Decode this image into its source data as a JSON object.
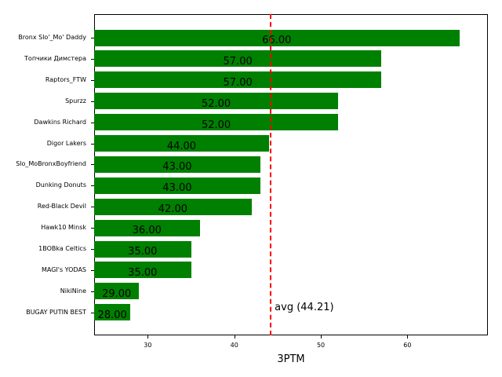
{
  "chart_data": {
    "type": "bar",
    "orientation": "horizontal",
    "title": "",
    "xlabel": "3PTM",
    "ylabel": "",
    "categories": [
      "Bronx Slo'_Mo' Daddy",
      "Топчики Димстера",
      "Raptors_FTW",
      "Spurzz",
      "Dawkins Richard",
      "Digor Lakers",
      "Slo_MoBronxBoyfriend",
      "Dunking Donuts",
      "Red-Black Devil",
      "Hawk10 Minsk",
      "1BOBka Celtics",
      "MAGI's YODAS",
      "NikiNine",
      "BUGAY PUTIN BEST"
    ],
    "values": [
      66,
      57,
      57,
      52,
      52,
      44,
      43,
      43,
      42,
      36,
      35,
      35,
      29,
      28
    ],
    "value_labels": [
      "66.00",
      "57.00",
      "57.00",
      "52.00",
      "52.00",
      "44.00",
      "43.00",
      "43.00",
      "42.00",
      "36.00",
      "35.00",
      "35.00",
      "29.00",
      "28.00"
    ],
    "xlim": [
      23.8,
      69.3
    ],
    "xticks": [
      30,
      40,
      50,
      60
    ],
    "xtick_labels": [
      "30",
      "40",
      "50",
      "60"
    ],
    "grid": false,
    "bar_color": "#008000",
    "reference_line": {
      "value": 44.21,
      "label": "avg (44.21)",
      "color": "#ff0000",
      "style": "dashed"
    }
  }
}
